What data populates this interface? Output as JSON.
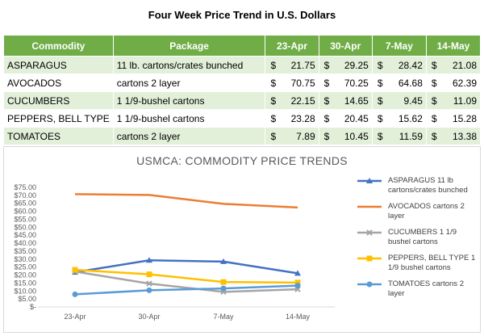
{
  "title": "Four Week Price Trend in U.S. Dollars",
  "table": {
    "headers": [
      "Commodity",
      "Package",
      "23-Apr",
      "30-Apr",
      "7-May",
      "14-May"
    ],
    "currency": "$",
    "rows": [
      {
        "commodity": "ASPARAGUS",
        "package": "11 lb. cartons/crates bunched",
        "prices": [
          "21.75",
          "29.25",
          "28.42",
          "21.08"
        ]
      },
      {
        "commodity": "AVOCADOS",
        "package": "cartons 2 layer",
        "prices": [
          "70.75",
          "70.25",
          "64.68",
          "62.39"
        ]
      },
      {
        "commodity": "CUCUMBERS",
        "package": "1 1/9-bushel cartons",
        "prices": [
          "22.15",
          "14.65",
          "9.45",
          "11.09"
        ]
      },
      {
        "commodity": "PEPPERS, BELL TYPE",
        "package": "1 1/9-bushel cartons",
        "prices": [
          "23.28",
          "20.45",
          "15.62",
          "15.28"
        ]
      },
      {
        "commodity": "TOMATOES",
        "package": "cartons 2 layer",
        "prices": [
          "7.89",
          "10.45",
          "11.59",
          "13.38"
        ]
      }
    ],
    "colors": {
      "header": "#70ad47",
      "band": "#e2efd9"
    }
  },
  "chart_data": {
    "type": "line",
    "title": "USMCA: COMMODITY PRICE TRENDS",
    "categories": [
      "23-Apr",
      "30-Apr",
      "7-May",
      "14-May"
    ],
    "ylim": [
      0,
      75
    ],
    "ytick_step": 5,
    "ytick_labels": [
      "$-",
      "$5.00",
      "$10.00",
      "$15.00",
      "$20.00",
      "$25.00",
      "$30.00",
      "$35.00",
      "$40.00",
      "$45.00",
      "$50.00",
      "$55.00",
      "$60.00",
      "$65.00",
      "$70.00",
      "$75.00"
    ],
    "grid": false,
    "legend_position": "right",
    "series": [
      {
        "name": "ASPARAGUS 11 lb cartons/crates bunched",
        "values": [
          21.75,
          29.25,
          28.42,
          21.08
        ],
        "color": "#4472c4",
        "marker": "triangle"
      },
      {
        "name": "AVOCADOS cartons 2 layer",
        "values": [
          70.75,
          70.25,
          64.68,
          62.39
        ],
        "color": "#ed7d31",
        "marker": "none"
      },
      {
        "name": "CUCUMBERS 1 1/9 bushel cartons",
        "values": [
          22.15,
          14.65,
          9.45,
          11.09
        ],
        "color": "#a5a5a5",
        "marker": "x"
      },
      {
        "name": "PEPPERS, BELL TYPE 1 1/9 bushel cartons",
        "values": [
          23.28,
          20.45,
          15.62,
          15.28
        ],
        "color": "#ffc000",
        "marker": "square"
      },
      {
        "name": "TOMATOES cartons 2 layer",
        "values": [
          7.89,
          10.45,
          11.59,
          13.38
        ],
        "color": "#5b9bd5",
        "marker": "circle"
      }
    ]
  }
}
